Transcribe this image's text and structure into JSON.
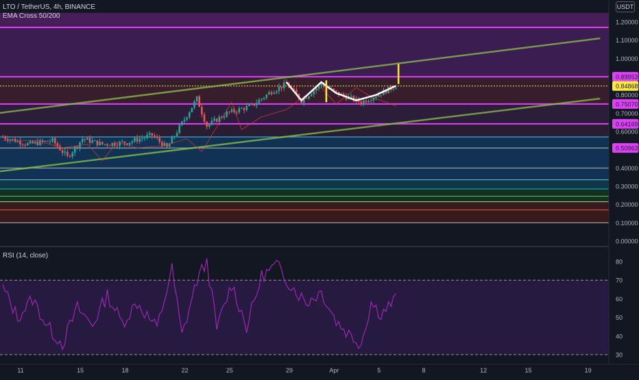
{
  "header": {
    "symbol_line": "LTO / TetherUS, 4h, BINANCE",
    "indicator": "EMA Cross 50/200",
    "rsi_label": "RSI (14, close)",
    "currency": "USDT"
  },
  "colors": {
    "background": "#131722",
    "up": "#26a69a",
    "down": "#ef5350",
    "rsi_line": "#9c27b0",
    "band_purple": "#7b1fa2",
    "band_red": "#b71c1c",
    "band_blue": "#0d47a1",
    "band_green": "#1b5e20",
    "trendline": "#8bc34a",
    "pattern": "#ffffff",
    "target": "#ffeb3b"
  },
  "price_axis": {
    "ticks": [
      "1.20000",
      "1.10000",
      "1.00000",
      "0.80000",
      "0.70000",
      "0.60000",
      "0.40000",
      "0.30000",
      "0.20000",
      "0.10000",
      "0.00000"
    ],
    "tick_values": [
      1.2,
      1.1,
      1.0,
      0.8,
      0.7,
      0.6,
      0.4,
      0.3,
      0.2,
      0.1,
      0.0
    ],
    "level_labels": [
      {
        "text": "0.89953",
        "value": 0.89953,
        "color": "#e040fb"
      },
      {
        "text": "0.84868",
        "value": 0.84868,
        "color": "#ffeb3b"
      },
      {
        "text": "0.75070",
        "value": 0.7507,
        "color": "#e040fb"
      },
      {
        "text": "0.64169",
        "value": 0.64169,
        "color": "#e040fb"
      },
      {
        "text": "0.50963",
        "value": 0.50963,
        "color": "#e040fb"
      }
    ]
  },
  "rsi_axis": {
    "ticks": [
      "80",
      "70",
      "60",
      "50",
      "40",
      "30"
    ],
    "tick_values": [
      80,
      70,
      60,
      50,
      40,
      30
    ],
    "bands": [
      70,
      30
    ]
  },
  "time_axis": {
    "labels": [
      "11",
      "15",
      "18",
      "22",
      "25",
      "29",
      "Apr",
      "5",
      "8",
      "12",
      "15",
      "19"
    ],
    "bar_index": [
      0,
      24,
      42,
      66,
      84,
      108,
      126,
      144,
      162,
      186,
      204,
      228
    ]
  },
  "chart_data": {
    "type": "candlestick",
    "symbol": "LTO / TetherUS",
    "interval": "4h",
    "exchange": "BINANCE",
    "y_range": [
      0.0,
      1.25
    ],
    "horizontal_levels": [
      {
        "value": 1.17,
        "color": "#e040fb"
      },
      {
        "value": 0.89953,
        "color": "#e040fb"
      },
      {
        "value": 0.84868,
        "color": "#ffeb3b",
        "dashed": true
      },
      {
        "value": 0.7507,
        "color": "#e040fb"
      },
      {
        "value": 0.64169,
        "color": "#e040fb"
      },
      {
        "value": 0.57,
        "color": "#4fc3f7"
      },
      {
        "value": 0.50963,
        "color": "#bbbbbb"
      },
      {
        "value": 0.4,
        "color": "#bbbbbb"
      },
      {
        "value": 0.335,
        "color": "#4dd0e1"
      },
      {
        "value": 0.285,
        "color": "#00bcd4"
      },
      {
        "value": 0.245,
        "color": "#66bb6a"
      },
      {
        "value": 0.215,
        "color": "#a5d6a7"
      },
      {
        "value": 0.17,
        "color": "#ef5350"
      },
      {
        "value": 0.1,
        "color": "#bbbbbb"
      }
    ],
    "zones": [
      {
        "from": 1.17,
        "to": 1.25,
        "color": "#4a1f5c"
      },
      {
        "from": 0.89953,
        "to": 1.17,
        "color": "#3d1d55"
      },
      {
        "from": 0.7507,
        "to": 0.89953,
        "color": "#3a1f2e"
      },
      {
        "from": 0.64169,
        "to": 0.7507,
        "color": "#2d1d3d"
      },
      {
        "from": 0.57,
        "to": 0.64169,
        "color": "#2a1f33"
      },
      {
        "from": 0.335,
        "to": 0.57,
        "color": "#123456"
      },
      {
        "from": 0.285,
        "to": 0.335,
        "color": "#10384a"
      },
      {
        "from": 0.215,
        "to": 0.285,
        "color": "#14321f"
      },
      {
        "from": 0.1,
        "to": 0.215,
        "color": "#3a1a1a"
      }
    ],
    "candles_summary": {
      "start_close": 0.57,
      "pivots": [
        {
          "bar": 0,
          "price": 0.57
        },
        {
          "bar": 10,
          "price": 0.53
        },
        {
          "bar": 20,
          "price": 0.55
        },
        {
          "bar": 26,
          "price": 0.46
        },
        {
          "bar": 32,
          "price": 0.56
        },
        {
          "bar": 40,
          "price": 0.53
        },
        {
          "bar": 50,
          "price": 0.54
        },
        {
          "bar": 60,
          "price": 0.58
        },
        {
          "bar": 66,
          "price": 0.51
        },
        {
          "bar": 78,
          "price": 0.78
        },
        {
          "bar": 82,
          "price": 0.63
        },
        {
          "bar": 90,
          "price": 0.7
        },
        {
          "bar": 100,
          "price": 0.74
        },
        {
          "bar": 108,
          "price": 0.82
        },
        {
          "bar": 114,
          "price": 0.86
        },
        {
          "bar": 120,
          "price": 0.77
        },
        {
          "bar": 128,
          "price": 0.86
        },
        {
          "bar": 134,
          "price": 0.81
        },
        {
          "bar": 144,
          "price": 0.76
        },
        {
          "bar": 152,
          "price": 0.81
        },
        {
          "bar": 158,
          "price": 0.85
        }
      ]
    },
    "trendlines": [
      {
        "from": {
          "bar": -2,
          "price": 0.7
        },
        "to": {
          "bar": 240,
          "price": 1.11
        },
        "color": "#8bc34a"
      },
      {
        "from": {
          "bar": -2,
          "price": 0.38
        },
        "to": {
          "bar": 240,
          "price": 0.78
        },
        "color": "#8bc34a"
      }
    ],
    "pattern_zigzag": [
      {
        "bar": 114,
        "price": 0.87
      },
      {
        "bar": 120,
        "price": 0.77
      },
      {
        "bar": 128,
        "price": 0.87
      },
      {
        "bar": 134,
        "price": 0.81
      },
      {
        "bar": 142,
        "price": 0.77
      },
      {
        "bar": 150,
        "price": 0.8
      },
      {
        "bar": 158,
        "price": 0.85
      }
    ],
    "target_lines": [
      {
        "bar": 130,
        "from": 0.76,
        "to": 0.88,
        "color": "#ffeb3b"
      },
      {
        "bar": 159,
        "from": 0.86,
        "to": 0.97,
        "color": "#ffeb3b"
      }
    ],
    "rsi": {
      "range": [
        25,
        85
      ],
      "pivots": [
        {
          "bar": 0,
          "v": 66
        },
        {
          "bar": 6,
          "v": 50
        },
        {
          "bar": 12,
          "v": 60
        },
        {
          "bar": 18,
          "v": 45
        },
        {
          "bar": 24,
          "v": 36
        },
        {
          "bar": 30,
          "v": 55
        },
        {
          "bar": 36,
          "v": 46
        },
        {
          "bar": 42,
          "v": 62
        },
        {
          "bar": 48,
          "v": 47
        },
        {
          "bar": 54,
          "v": 58
        },
        {
          "bar": 62,
          "v": 44
        },
        {
          "bar": 68,
          "v": 76
        },
        {
          "bar": 72,
          "v": 40
        },
        {
          "bar": 78,
          "v": 70
        },
        {
          "bar": 82,
          "v": 80
        },
        {
          "bar": 86,
          "v": 44
        },
        {
          "bar": 92,
          "v": 68
        },
        {
          "bar": 98,
          "v": 45
        },
        {
          "bar": 104,
          "v": 72
        },
        {
          "bar": 110,
          "v": 78
        },
        {
          "bar": 116,
          "v": 67
        },
        {
          "bar": 122,
          "v": 58
        },
        {
          "bar": 128,
          "v": 64
        },
        {
          "bar": 134,
          "v": 48
        },
        {
          "bar": 140,
          "v": 40
        },
        {
          "bar": 144,
          "v": 36
        },
        {
          "bar": 148,
          "v": 58
        },
        {
          "bar": 152,
          "v": 52
        },
        {
          "bar": 158,
          "v": 60
        }
      ]
    }
  }
}
